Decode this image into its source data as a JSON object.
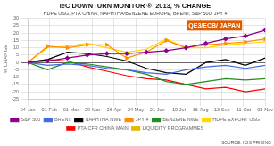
{
  "chart_data": {
    "type": "line",
    "title": "IeC DOWNTURN MONITOR ®  2013, % CHANGE",
    "subtitle": "HDPE USG, PTA CHINA, NAPHTHA/BENZENE EUROPE, BRENT, S&P 500, JPY ¥",
    "y_label": "% CHANGE",
    "x": [
      0,
      0.9166666666666666,
      1.8333333333333333,
      2.75,
      3.6666666666666665,
      4.583333333333333,
      5.5,
      6.416666666666667,
      7.333333333333333,
      8.25,
      9.166666666666666,
      10.083333333333334,
      11
    ],
    "xlim": [
      0,
      11
    ],
    "xticks": [
      {
        "value": 0,
        "label": "04-Jan"
      },
      {
        "value": 1,
        "label": "01-Feb"
      },
      {
        "value": 2,
        "label": "01-Mar"
      },
      {
        "value": 3,
        "label": "29-Mar"
      },
      {
        "value": 4,
        "label": "26-Apr"
      },
      {
        "value": 5,
        "label": "24-May"
      },
      {
        "value": 6,
        "label": "21-Jun"
      },
      {
        "value": 7,
        "label": "19-Jul"
      },
      {
        "value": 8,
        "label": "16-Aug"
      },
      {
        "value": 9,
        "label": "13-Sep"
      },
      {
        "value": 10,
        "label": "11-Oct"
      },
      {
        "value": 11,
        "label": "08-Nov"
      }
    ],
    "ylim": [
      -25,
      30
    ],
    "yticks": [
      -25,
      -20,
      -15,
      -10,
      -5,
      0,
      5,
      10,
      15,
      20,
      25,
      30
    ],
    "grid": true,
    "legend": "bottom",
    "series": [
      {
        "name": "S&P 500",
        "color": "#8B008B",
        "marker": "diamond",
        "values": [
          0,
          1,
          3,
          5,
          6,
          6,
          7,
          8,
          10,
          13,
          16,
          18,
          22
        ]
      },
      {
        "name": "BRENT",
        "color": "#4169E1",
        "values": [
          0,
          -2,
          -1,
          -2,
          -4,
          -5,
          -7,
          -8,
          -5,
          -3,
          -2,
          -4,
          -2
        ]
      },
      {
        "name": "NAPHTHA NWE",
        "color": "#000000",
        "values": [
          0,
          2,
          7,
          6,
          4,
          1,
          -4,
          -7,
          -8,
          0,
          2,
          -2,
          3
        ]
      },
      {
        "name": "JPY ¥",
        "color": "#FF8C00",
        "marker": "triangle_right",
        "values": [
          0,
          11,
          10,
          12,
          12,
          3,
          7,
          15,
          10,
          12,
          13,
          14,
          16
        ]
      },
      {
        "name": "BENZENE NWE",
        "color": "#228B22",
        "values": [
          0,
          -5,
          0,
          -1,
          -3,
          -5,
          -8,
          -13,
          -15,
          -13,
          -11,
          -12,
          -11
        ]
      },
      {
        "name": "HDPE EXPORT USG",
        "color": "#FFD700",
        "values": [
          0,
          10,
          11,
          13,
          10,
          7,
          9,
          16,
          10,
          10,
          12,
          13,
          14
        ]
      },
      {
        "name": "PTA CFR CHINA MAIN",
        "color": "#FF0000",
        "values": [
          0,
          2,
          1,
          -3,
          -6,
          -9,
          -11,
          -12,
          -15,
          -18,
          -17,
          -20,
          -18
        ]
      },
      {
        "name": "LIQUIDITY PROGRAMMES",
        "color": "#E8B800",
        "values": [
          null,
          null,
          null,
          null,
          null,
          null,
          null,
          null,
          null,
          null,
          null,
          null,
          null
        ]
      }
    ],
    "annotations": [
      {
        "text": "QE3/ECB/ JAPAN",
        "color": "#E05A00"
      },
      {
        "text": "SOURCE: ICIS PRICING"
      }
    ]
  }
}
